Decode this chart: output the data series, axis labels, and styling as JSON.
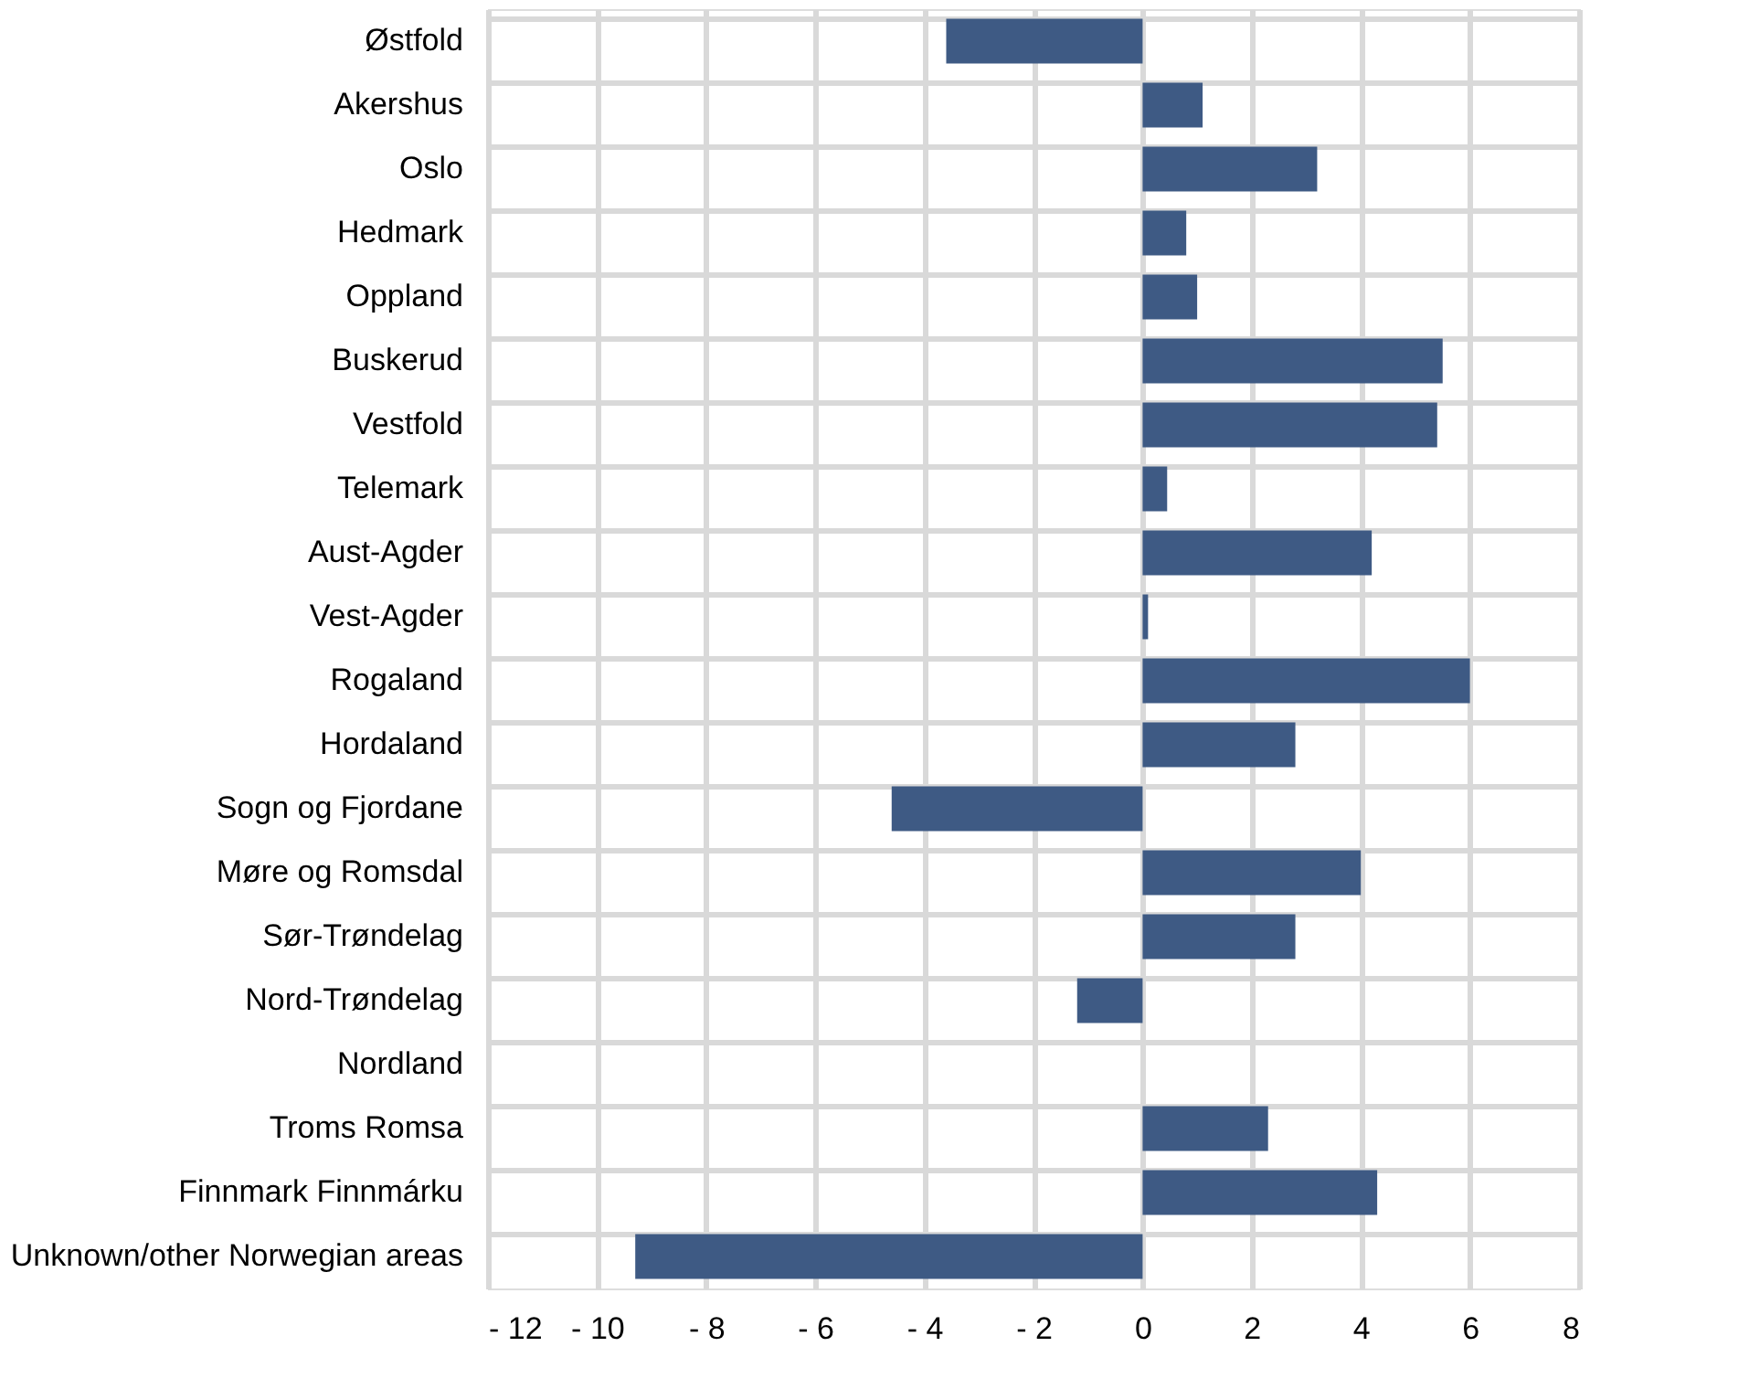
{
  "chart_data": {
    "type": "bar",
    "orientation": "horizontal",
    "categories": [
      "Østfold",
      "Akershus",
      "Oslo",
      "Hedmark",
      "Oppland",
      "Buskerud",
      "Vestfold",
      "Telemark",
      "Aust-Agder",
      "Vest-Agder",
      "Rogaland",
      "Hordaland",
      "Sogn og Fjordane",
      "Møre og Romsdal",
      "Sør-Trøndelag",
      "Nord-Trøndelag",
      "Nordland",
      "Troms Romsa",
      "Finnmark Finnmárku",
      "Unknown/other Norwegian areas"
    ],
    "values": [
      -3.6,
      1.1,
      3.2,
      0.8,
      1.0,
      5.5,
      5.4,
      0.45,
      4.2,
      0.1,
      6.0,
      2.8,
      -4.6,
      4.0,
      2.8,
      -1.2,
      0,
      2.3,
      4.3,
      -9.3
    ],
    "color": "#3e5a84",
    "xlim": [
      -12,
      8
    ],
    "xticks": [
      {
        "value": -12,
        "label": "- 12"
      },
      {
        "value": -10,
        "label": "- 10"
      },
      {
        "value": -8,
        "label": "- 8"
      },
      {
        "value": -6,
        "label": "- 6"
      },
      {
        "value": -4,
        "label": "- 4"
      },
      {
        "value": -2,
        "label": "- 2"
      },
      0,
      2,
      4,
      6,
      8
    ],
    "grid": true
  }
}
